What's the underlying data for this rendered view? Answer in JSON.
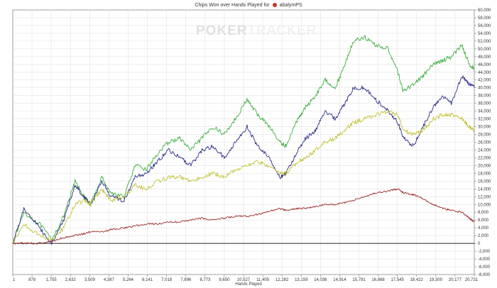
{
  "title": {
    "prefix": "Chips Won over Hands Played for",
    "player": "abalymPS"
  },
  "watermark": {
    "bold": "POKER",
    "light": "TRACKER"
  },
  "chart_data": {
    "type": "line",
    "title": "Chips Won over Hands Played for abalymPS",
    "xlabel": "Hands Played",
    "ylabel": "",
    "xlim": [
      1,
      20731
    ],
    "ylim": [
      -8000,
      60000
    ],
    "grid": true,
    "x_ticks": [
      "1",
      "878",
      "1,755",
      "2,632",
      "3,509",
      "4,387",
      "5,264",
      "6,141",
      "7,018",
      "7,896",
      "8,773",
      "9,650",
      "10,527",
      "11,405",
      "12,282",
      "13,159",
      "14,036",
      "14,914",
      "15,791",
      "16,868",
      "17,545",
      "18,422",
      "19,300",
      "20,177",
      "20,731"
    ],
    "y_ticks": [
      "60,000",
      "58,000",
      "56,000",
      "54,000",
      "52,000",
      "50,000",
      "48,000",
      "46,000",
      "44,000",
      "42,000",
      "40,000",
      "38,000",
      "36,000",
      "34,000",
      "32,000",
      "30,000",
      "28,000",
      "26,000",
      "24,000",
      "22,000",
      "20,000",
      "18,000",
      "16,000",
      "14,000",
      "12,000",
      "10,000",
      "8,000",
      "6,000",
      "4,000",
      "2,000",
      "0",
      "-2,000",
      "-4,000",
      "-6,000",
      "-8,000"
    ],
    "series": [
      {
        "color": "#3fae3f",
        "x": [
          1,
          500,
          1200,
          1750,
          2300,
          2800,
          3200,
          3500,
          4000,
          4400,
          5000,
          5500,
          6000,
          6500,
          7000,
          7500,
          8000,
          8500,
          9000,
          9500,
          10000,
          10527,
          11000,
          11405,
          12000,
          12282,
          12800,
          13159,
          13600,
          14036,
          14500,
          14914,
          15300,
          15791,
          16300,
          16868,
          17300,
          17545,
          18000,
          18422,
          18900,
          19300,
          19700,
          20177,
          20500,
          20731
        ],
        "values": [
          0,
          8000,
          5000,
          1000,
          7000,
          16000,
          12000,
          10000,
          17000,
          13000,
          12000,
          20000,
          19000,
          23000,
          26000,
          27000,
          24000,
          27000,
          30000,
          28000,
          32000,
          37000,
          33000,
          31000,
          26000,
          25000,
          32000,
          35000,
          38000,
          42000,
          40000,
          46000,
          52000,
          53000,
          51000,
          50000,
          44000,
          39000,
          41000,
          43000,
          46000,
          47000,
          48000,
          51000,
          46000,
          45000
        ]
      },
      {
        "color": "#2b2b8c",
        "x": [
          1,
          500,
          1200,
          1750,
          2300,
          2800,
          3200,
          3500,
          4000,
          4400,
          5000,
          5500,
          6000,
          6500,
          7000,
          7500,
          8000,
          8500,
          9000,
          9500,
          10000,
          10527,
          11000,
          11405,
          12000,
          12282,
          12800,
          13159,
          13600,
          14036,
          14500,
          14914,
          15300,
          15791,
          16300,
          16868,
          17300,
          17545,
          18000,
          18422,
          18900,
          19300,
          19700,
          20177,
          20500,
          20731
        ],
        "values": [
          0,
          9000,
          4000,
          0,
          6000,
          15000,
          12000,
          10000,
          16000,
          12000,
          11000,
          17000,
          18000,
          21000,
          24000,
          22000,
          20000,
          24000,
          25000,
          22000,
          26000,
          30000,
          25000,
          23000,
          17000,
          18000,
          24000,
          27000,
          29000,
          34000,
          32000,
          36000,
          40000,
          40000,
          37000,
          34000,
          31000,
          27000,
          25000,
          30000,
          35000,
          38000,
          36000,
          43000,
          41000,
          40000
        ]
      },
      {
        "color": "#c2c23c",
        "x": [
          1,
          500,
          1200,
          1750,
          2300,
          2800,
          3200,
          3500,
          4000,
          4400,
          5000,
          5500,
          6000,
          6500,
          7000,
          7500,
          8000,
          8500,
          9000,
          9500,
          10000,
          10527,
          11000,
          11405,
          12000,
          12282,
          12800,
          13159,
          13600,
          14036,
          14500,
          14914,
          15300,
          15791,
          16300,
          16868,
          17300,
          17545,
          18000,
          18422,
          18900,
          19300,
          19700,
          20177,
          20500,
          20731
        ],
        "values": [
          0,
          5000,
          2000,
          1000,
          4000,
          10000,
          11000,
          10000,
          14000,
          11000,
          12000,
          15000,
          14000,
          16000,
          17000,
          17000,
          16000,
          17000,
          18000,
          17000,
          19000,
          20000,
          21000,
          20000,
          18000,
          18000,
          21000,
          22000,
          24000,
          26000,
          27000,
          29000,
          31000,
          32000,
          33000,
          34000,
          33000,
          29000,
          28000,
          29000,
          32000,
          33000,
          33000,
          32000,
          30000,
          29000
        ]
      },
      {
        "color": "#9c2a2a",
        "x": [
          1,
          500,
          1200,
          1750,
          2300,
          2800,
          3200,
          3500,
          4000,
          4400,
          5000,
          5500,
          6000,
          6500,
          7000,
          7500,
          8000,
          8500,
          9000,
          9500,
          10000,
          10527,
          11000,
          11405,
          12000,
          12282,
          12800,
          13159,
          13600,
          14036,
          14500,
          14914,
          15300,
          15791,
          16300,
          16868,
          17300,
          17545,
          18000,
          18422,
          18900,
          19300,
          19700,
          20177,
          20500,
          20731
        ],
        "values": [
          0,
          0,
          0,
          500,
          1500,
          2000,
          2500,
          3000,
          3000,
          3500,
          4000,
          4500,
          5000,
          5000,
          5500,
          5500,
          6000,
          6500,
          6000,
          6500,
          7000,
          7000,
          7500,
          8000,
          9000,
          8500,
          9000,
          9000,
          9500,
          10000,
          10000,
          10500,
          11000,
          12000,
          13000,
          13500,
          14000,
          13000,
          12500,
          11500,
          10000,
          9000,
          8500,
          8000,
          6500,
          5500
        ]
      }
    ]
  }
}
